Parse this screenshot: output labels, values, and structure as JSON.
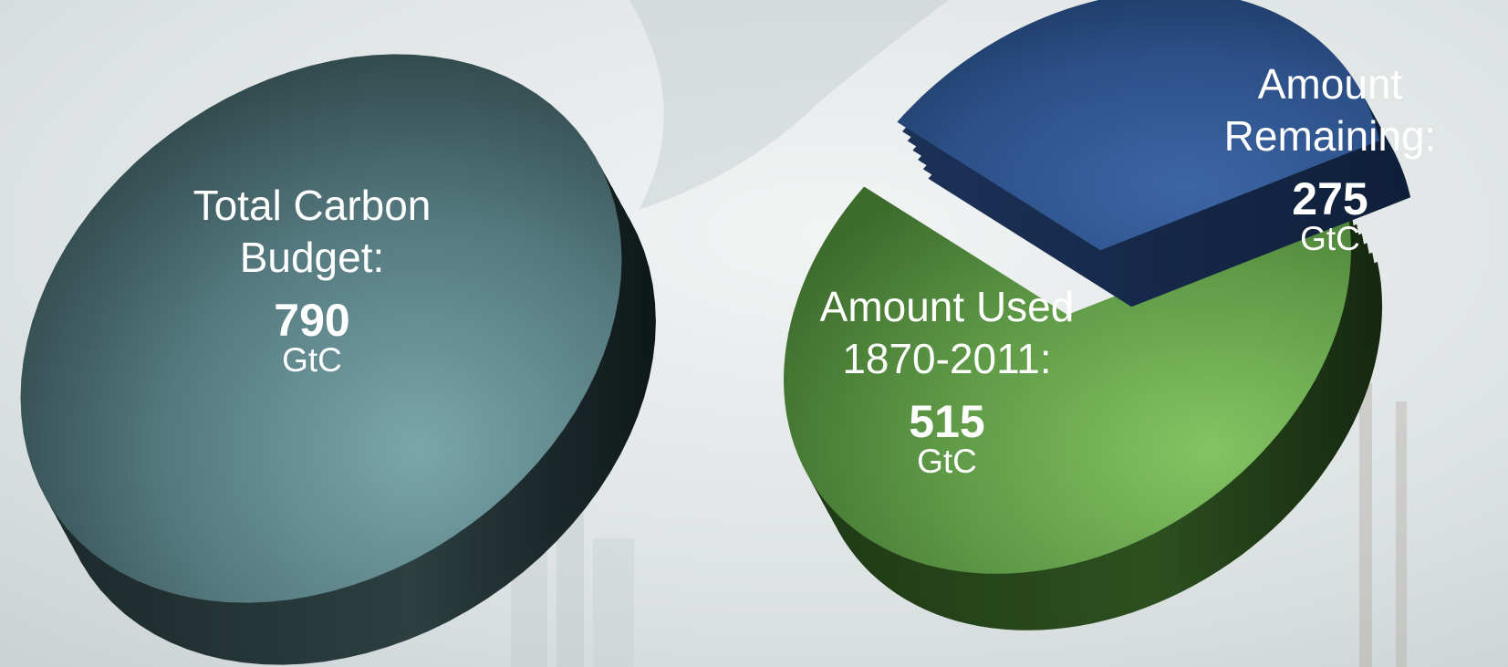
{
  "chart_data": [
    {
      "type": "pie",
      "slices": [
        {
          "label_lines": [
            "Total Carbon",
            "Budget:"
          ],
          "value": 790,
          "value_text": "790",
          "unit": "GtC",
          "color": "#4f7378"
        }
      ]
    },
    {
      "type": "pie",
      "exploded": true,
      "total": 790,
      "slices": [
        {
          "label_lines": [
            "Amount Used",
            "1870-2011:"
          ],
          "value": 515,
          "value_text": "515",
          "unit": "GtC",
          "color": "#5e9c45"
        },
        {
          "label_lines": [
            "Amount",
            "Remaining:"
          ],
          "value": 275,
          "value_text": "275",
          "unit": "GtC",
          "color": "#2b4f85"
        }
      ]
    }
  ]
}
